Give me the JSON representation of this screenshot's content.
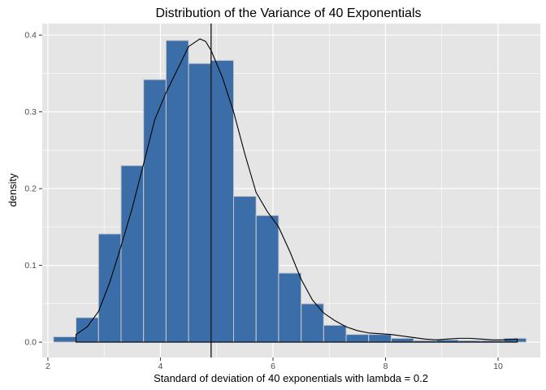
{
  "chart_data": {
    "type": "bar",
    "title": "Distribution of the Variance of 40 Exponentials",
    "xlabel": "Standard of deviation of 40 exponentials with lambda = 0.2",
    "ylabel": "density",
    "xlim": [
      1.9,
      10.75
    ],
    "ylim": [
      -0.02,
      0.415
    ],
    "x_ticks": [
      2,
      4,
      6,
      8,
      10
    ],
    "x_tick_labels": [
      "2",
      "4",
      "6",
      "8",
      "10"
    ],
    "y_ticks": [
      0.0,
      0.1,
      0.2,
      0.3,
      0.4
    ],
    "y_tick_labels": [
      "0.0",
      "0.1",
      "0.2",
      "0.3",
      "0.4"
    ],
    "grid": true,
    "bin_width": 0.4,
    "bins": [
      {
        "x": 2.3,
        "density": 0.007
      },
      {
        "x": 2.7,
        "density": 0.032
      },
      {
        "x": 3.1,
        "density": 0.141
      },
      {
        "x": 3.5,
        "density": 0.23
      },
      {
        "x": 3.9,
        "density": 0.342
      },
      {
        "x": 4.3,
        "density": 0.393
      },
      {
        "x": 4.7,
        "density": 0.363
      },
      {
        "x": 5.1,
        "density": 0.367
      },
      {
        "x": 5.5,
        "density": 0.19
      },
      {
        "x": 5.9,
        "density": 0.165
      },
      {
        "x": 6.3,
        "density": 0.09
      },
      {
        "x": 6.7,
        "density": 0.05
      },
      {
        "x": 7.1,
        "density": 0.022
      },
      {
        "x": 7.5,
        "density": 0.01
      },
      {
        "x": 7.9,
        "density": 0.01
      },
      {
        "x": 8.3,
        "density": 0.005
      },
      {
        "x": 8.7,
        "density": 0.002
      },
      {
        "x": 9.1,
        "density": 0.003
      },
      {
        "x": 9.5,
        "density": 0.002
      },
      {
        "x": 9.9,
        "density": 0.002
      },
      {
        "x": 10.3,
        "density": 0.005
      }
    ],
    "density_curve": {
      "x": [
        2.5,
        2.7,
        2.9,
        3.1,
        3.3,
        3.5,
        3.7,
        3.9,
        4.1,
        4.3,
        4.5,
        4.7,
        4.8,
        4.9,
        5.1,
        5.3,
        5.5,
        5.7,
        5.9,
        6.1,
        6.3,
        6.5,
        6.7,
        6.9,
        7.1,
        7.3,
        7.5,
        7.7,
        7.9,
        8.1,
        8.3,
        8.5,
        8.7,
        8.9,
        9.1,
        9.3,
        9.5,
        9.7,
        9.9,
        10.1,
        10.34
      ],
      "y": [
        0.01,
        0.02,
        0.04,
        0.078,
        0.125,
        0.175,
        0.232,
        0.29,
        0.325,
        0.355,
        0.385,
        0.395,
        0.392,
        0.38,
        0.345,
        0.3,
        0.245,
        0.195,
        0.17,
        0.15,
        0.118,
        0.082,
        0.055,
        0.038,
        0.028,
        0.02,
        0.015,
        0.012,
        0.011,
        0.01,
        0.008,
        0.006,
        0.004,
        0.003,
        0.004,
        0.005,
        0.005,
        0.004,
        0.003,
        0.003,
        0.004
      ]
    },
    "vline_x": 4.9,
    "colors": {
      "panel_bg": "#e5e5e5",
      "grid": "#ffffff",
      "bar_fill": "#3b6ea8",
      "bar_stroke": "#c9c9c9",
      "line": "#000000"
    }
  }
}
